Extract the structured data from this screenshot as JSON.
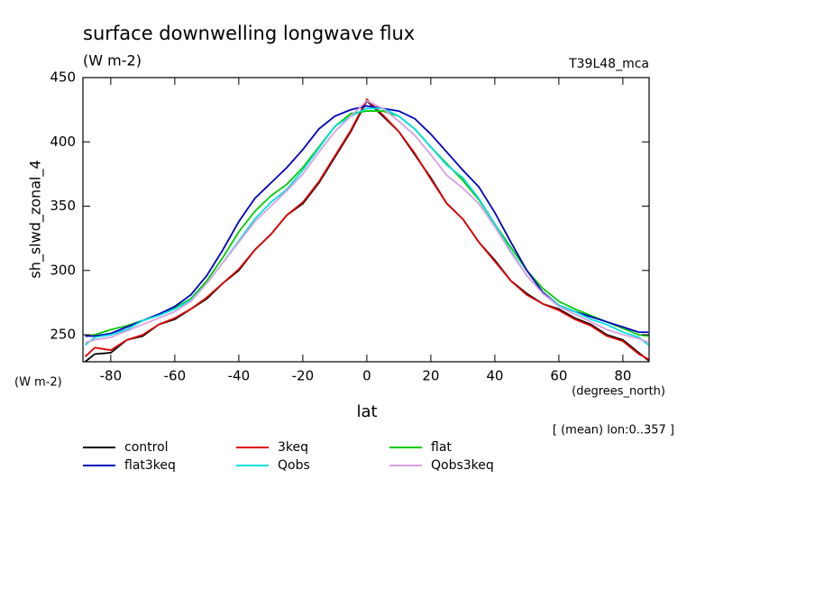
{
  "chart_data": {
    "type": "line",
    "title": "surface downwelling longwave flux",
    "subtitle": "(W m-2)",
    "run_label": "T39L48_mca",
    "ylabel": "sh_slwd_zonal_4",
    "y_units": "(W m-2)",
    "x_units": "(degrees_north)",
    "xlabel": "lat",
    "annotation": "[ (mean) lon:0..357 ]",
    "xlim": [
      -88.7,
      88.2
    ],
    "ylim": [
      229,
      450
    ],
    "xticks": [
      -80,
      -60,
      -40,
      -20,
      0,
      20,
      40,
      60,
      80
    ],
    "yticks": [
      250,
      300,
      350,
      400,
      450
    ],
    "x": [
      -88,
      -85,
      -80,
      -75,
      -70,
      -65,
      -60,
      -55,
      -50,
      -45,
      -40,
      -35,
      -30,
      -25,
      -20,
      -15,
      -10,
      -5,
      0,
      5,
      10,
      15,
      20,
      25,
      30,
      35,
      40,
      45,
      50,
      55,
      60,
      65,
      70,
      75,
      80,
      85,
      88
    ],
    "series": [
      {
        "name": "control",
        "color": "#000000",
        "values": [
          229,
          235,
          236,
          246,
          249,
          258,
          262,
          270,
          278,
          290,
          300,
          316,
          328,
          343,
          352,
          368,
          388,
          408,
          432,
          420,
          408,
          390,
          372,
          352,
          340,
          322,
          308,
          292,
          282,
          274,
          270,
          263,
          258,
          250,
          246,
          236,
          230
        ]
      },
      {
        "name": "3keq",
        "color": "#e00000",
        "values": [
          233,
          240,
          238,
          246,
          250,
          258,
          263,
          270,
          279,
          290,
          301,
          316,
          328,
          343,
          353,
          369,
          389,
          409,
          433,
          421,
          408,
          391,
          371,
          352,
          340,
          322,
          307,
          292,
          281,
          274,
          269,
          262,
          257,
          249,
          245,
          235,
          231
        ]
      },
      {
        "name": "flat",
        "color": "#00cc00",
        "values": [
          249,
          250,
          254,
          257,
          261,
          266,
          271,
          278,
          292,
          310,
          330,
          346,
          358,
          367,
          380,
          396,
          412,
          422,
          424,
          424,
          420,
          410,
          396,
          383,
          370,
          355,
          336,
          318,
          300,
          286,
          276,
          270,
          265,
          260,
          255,
          250,
          249
        ]
      },
      {
        "name": "flat3keq",
        "color": "#0000c0",
        "values": [
          249,
          249,
          251,
          256,
          261,
          266,
          272,
          281,
          296,
          316,
          338,
          356,
          368,
          380,
          394,
          410,
          420,
          425,
          428,
          426,
          424,
          418,
          406,
          392,
          378,
          365,
          345,
          322,
          300,
          283,
          273,
          268,
          264,
          260,
          256,
          252,
          252
        ]
      },
      {
        "name": "Qobs",
        "color": "#00e0e0",
        "values": [
          242,
          248,
          250,
          254,
          261,
          265,
          270,
          277,
          290,
          306,
          323,
          340,
          353,
          363,
          378,
          395,
          412,
          420,
          426,
          426,
          420,
          410,
          396,
          382,
          372,
          356,
          336,
          315,
          296,
          282,
          273,
          268,
          262,
          258,
          252,
          248,
          242
        ]
      },
      {
        "name": "Qobs3keq",
        "color": "#d8a0e0",
        "values": [
          244,
          246,
          248,
          253,
          258,
          263,
          268,
          276,
          290,
          306,
          322,
          338,
          350,
          362,
          375,
          392,
          408,
          420,
          432,
          426,
          416,
          405,
          390,
          374,
          364,
          352,
          334,
          314,
          296,
          282,
          272,
          266,
          260,
          254,
          250,
          247,
          244
        ]
      }
    ]
  }
}
